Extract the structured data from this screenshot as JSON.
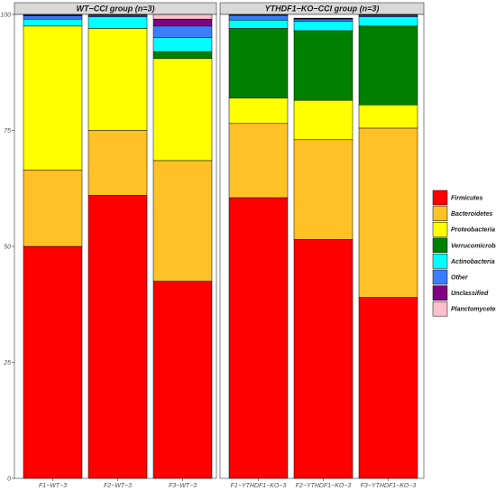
{
  "chart_data": {
    "type": "bar",
    "stacked": true,
    "ylim": [
      0,
      100
    ],
    "yticks": [
      "0",
      "25",
      "50",
      "75",
      "100"
    ],
    "grid": false,
    "legend_position": "right",
    "panels": [
      {
        "title": "WT−CCI group (n=3)",
        "categories": [
          "F1−WT−3",
          "F2−WT−3",
          "F3−WT−3"
        ]
      },
      {
        "title": "YTHDF1−KO−CCI group (n=3)",
        "categories": [
          "F1−YTHDF1−KO−3",
          "F2−YTHDF1−KO−3",
          "F3−YTHDF1−KO−3"
        ]
      }
    ],
    "series": [
      {
        "name": "Firmicutes",
        "color": "#ff0000",
        "values": [
          50.0,
          61.0,
          42.5,
          60.5,
          51.5,
          39.0
        ]
      },
      {
        "name": "Bacteroidetes",
        "color": "#ffc125",
        "values": [
          16.5,
          14.0,
          26.0,
          16.0,
          21.5,
          36.5
        ]
      },
      {
        "name": "Proteobacteria",
        "color": "#ffff00",
        "values": [
          31.0,
          22.0,
          22.0,
          5.5,
          8.5,
          5.0
        ]
      },
      {
        "name": "Verrucomicrobia",
        "color": "#008000",
        "values": [
          0.0,
          0.0,
          1.5,
          15.0,
          15.0,
          17.0
        ]
      },
      {
        "name": "Actinobacteria",
        "color": "#00ffff",
        "values": [
          1.5,
          2.5,
          3.0,
          1.8,
          2.0,
          2.0
        ]
      },
      {
        "name": "Other",
        "color": "#3a7dff",
        "values": [
          0.7,
          0.3,
          2.5,
          1.0,
          0.5,
          0.3
        ]
      },
      {
        "name": "Unclassified",
        "color": "#800080",
        "values": [
          0.2,
          0.1,
          1.5,
          0.1,
          0.1,
          0.1
        ]
      },
      {
        "name": "Planctomycetes",
        "color": "#ffc0cb",
        "values": [
          0.1,
          0.1,
          1.0,
          0.1,
          0.1,
          0.1
        ]
      }
    ]
  }
}
